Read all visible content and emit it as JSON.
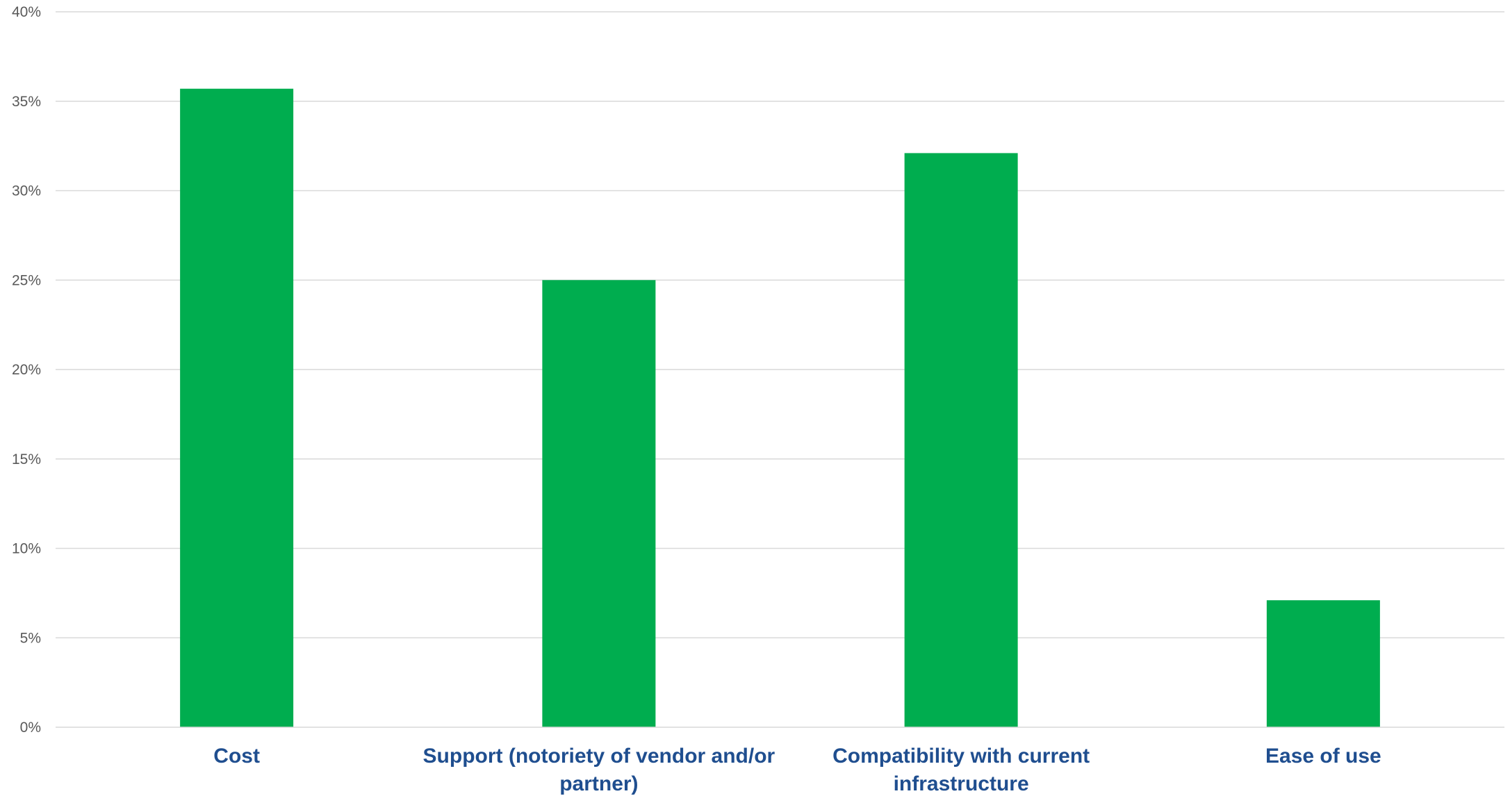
{
  "chart_data": {
    "type": "bar",
    "categories": [
      "Cost",
      "Support (notoriety of vendor and/or partner)",
      "Compatibility with current infrastructure",
      "Ease of use"
    ],
    "category_lines": [
      [
        "Cost"
      ],
      [
        "Support (notoriety of vendor and/or",
        "partner)"
      ],
      [
        "Compatibility with current",
        "infrastructure"
      ],
      [
        "Ease of use"
      ]
    ],
    "values": [
      35.7,
      25.0,
      32.1,
      7.1
    ],
    "title": "",
    "xlabel": "",
    "ylabel": "",
    "ylim": [
      0,
      40
    ],
    "yticks": [
      0,
      5,
      10,
      15,
      20,
      25,
      30,
      35,
      40
    ],
    "ytick_labels": [
      "0%",
      "5%",
      "10%",
      "15%",
      "20%",
      "25%",
      "30%",
      "35%",
      "40%"
    ],
    "grid": true,
    "legend": "none",
    "colors": {
      "bar": "#00ad4f",
      "category_label": "#1f4e8f",
      "tick_label": "#595959",
      "grid": "#d9d9d9"
    }
  }
}
